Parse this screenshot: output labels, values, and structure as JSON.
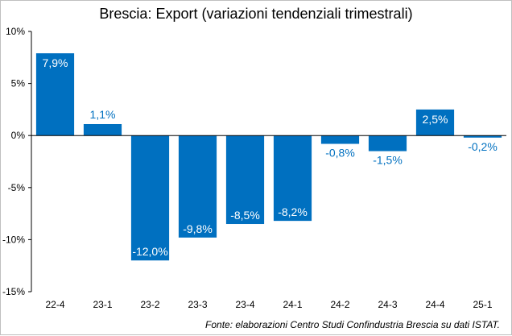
{
  "chart_data": {
    "type": "bar",
    "title": "Brescia: Export (variazioni tendenziali trimestrali)",
    "xlabel": "",
    "ylabel": "",
    "categories": [
      "22-4",
      "23-1",
      "23-2",
      "23-3",
      "23-4",
      "24-1",
      "24-2",
      "24-3",
      "24-4",
      "25-1"
    ],
    "values": [
      7.9,
      1.1,
      -12.0,
      -9.8,
      -8.5,
      -8.2,
      -0.8,
      -1.5,
      2.5,
      -0.2
    ],
    "data_labels": [
      "7,9%",
      "1,1%",
      "-12,0%",
      "-9,8%",
      "-8,5%",
      "-8,2%",
      "-0,8%",
      "-1,5%",
      "2,5%",
      "-0,2%"
    ],
    "ylim": [
      -15,
      10
    ],
    "yticks": [
      10,
      5,
      0,
      -5,
      -10,
      -15
    ],
    "ytick_labels": [
      "10%",
      "5%",
      "0%",
      "-5%",
      "-10%",
      "-15%"
    ],
    "grid": false,
    "legend": "none",
    "bar_color": "#0070C0",
    "inside_label_color": "#ffffff",
    "outside_label_color": "#0070C0"
  },
  "source_note": "Fonte: elaborazioni Centro Studi Confindustria Brescia su dati ISTAT."
}
